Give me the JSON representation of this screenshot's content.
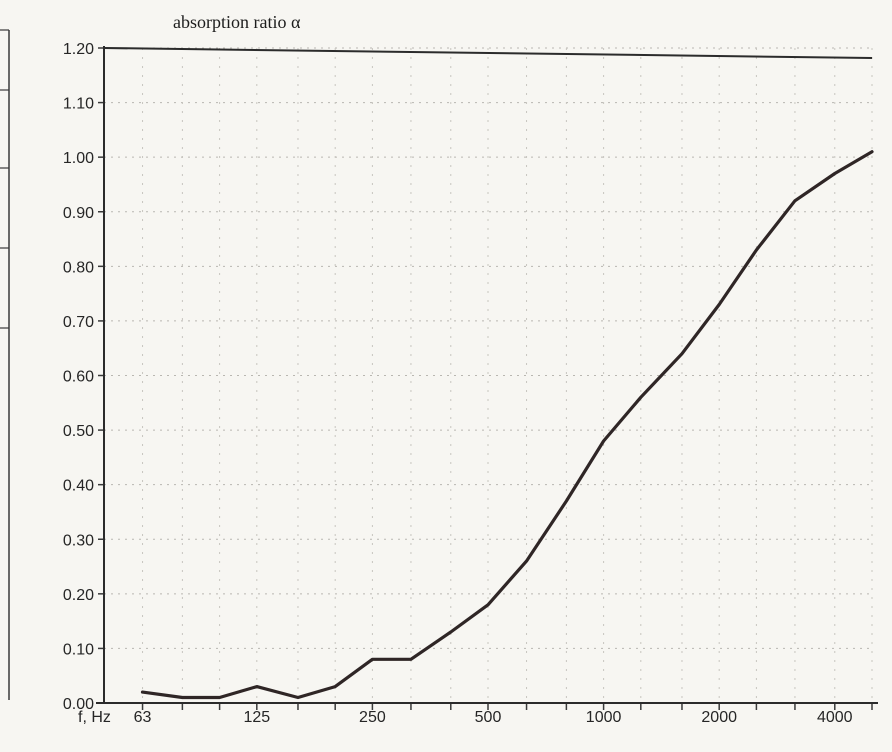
{
  "chart_data": {
    "type": "line",
    "title": "absorption ratio α",
    "xlabel": "f, Hz",
    "ylabel": "",
    "x_tick_labels": [
      "63",
      "125",
      "250",
      "500",
      "1000",
      "2000",
      "4000"
    ],
    "y_tick_labels": [
      "0.00",
      "0.10",
      "0.20",
      "0.30",
      "0.40",
      "0.50",
      "0.60",
      "0.70",
      "0.80",
      "0.90",
      "1.00",
      "1.10",
      "1.20"
    ],
    "ylim": [
      0,
      1.2
    ],
    "x_scale": "log",
    "xlim": [
      50,
      5000
    ],
    "grid": true,
    "legend": "none",
    "series": [
      {
        "x": [
          63,
          80,
          100,
          125,
          160,
          200,
          250,
          315,
          400,
          500,
          630,
          800,
          1000,
          1250,
          1600,
          2000,
          2500,
          3150,
          4000,
          5000
        ],
        "y": [
          0.02,
          0.01,
          0.01,
          0.03,
          0.01,
          0.03,
          0.08,
          0.08,
          0.13,
          0.18,
          0.26,
          0.37,
          0.48,
          0.56,
          0.64,
          0.73,
          0.83,
          0.92,
          0.97,
          1.01
        ],
        "color": "#2f2626"
      }
    ]
  }
}
